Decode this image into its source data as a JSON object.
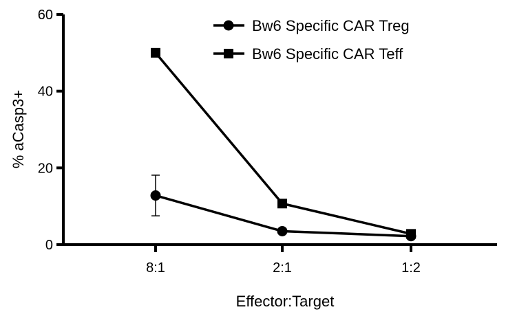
{
  "chart_data": {
    "type": "line",
    "categories": [
      "8:1",
      "2:1",
      "1:2"
    ],
    "xlabel": "Effector:Target",
    "ylabel": "% aCasp3+",
    "ylim": [
      0,
      60
    ],
    "yticks": [
      0,
      20,
      40,
      60
    ],
    "series": [
      {
        "name": "Bw6 Specific CAR Treg",
        "marker": "circle",
        "values": [
          12.8,
          3.5,
          2.2
        ],
        "error": [
          5.3,
          0,
          0
        ]
      },
      {
        "name": "Bw6 Specific CAR Teff",
        "marker": "square",
        "values": [
          50.0,
          10.7,
          2.8
        ],
        "error": [
          0,
          0,
          0
        ]
      }
    ],
    "legend": "top-right",
    "grid": false
  }
}
